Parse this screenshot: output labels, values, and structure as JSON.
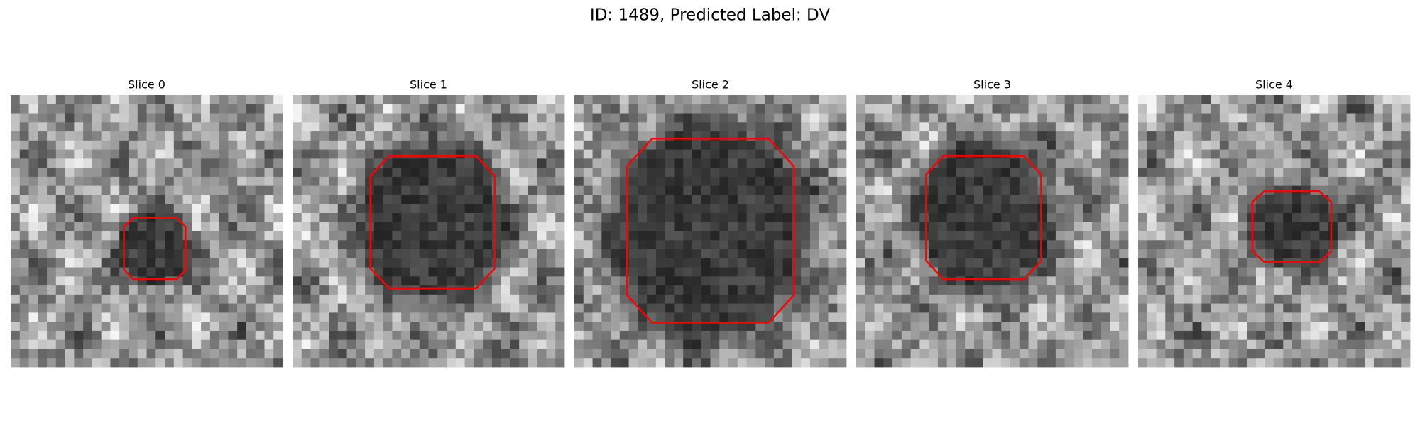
{
  "header": {
    "title": "ID: 1489, Predicted Label: DV"
  },
  "panels": [
    {
      "title": "Slice 0"
    },
    {
      "title": "Slice 1"
    },
    {
      "title": "Slice 2"
    },
    {
      "title": "Slice 3"
    },
    {
      "title": "Slice 4"
    }
  ]
}
